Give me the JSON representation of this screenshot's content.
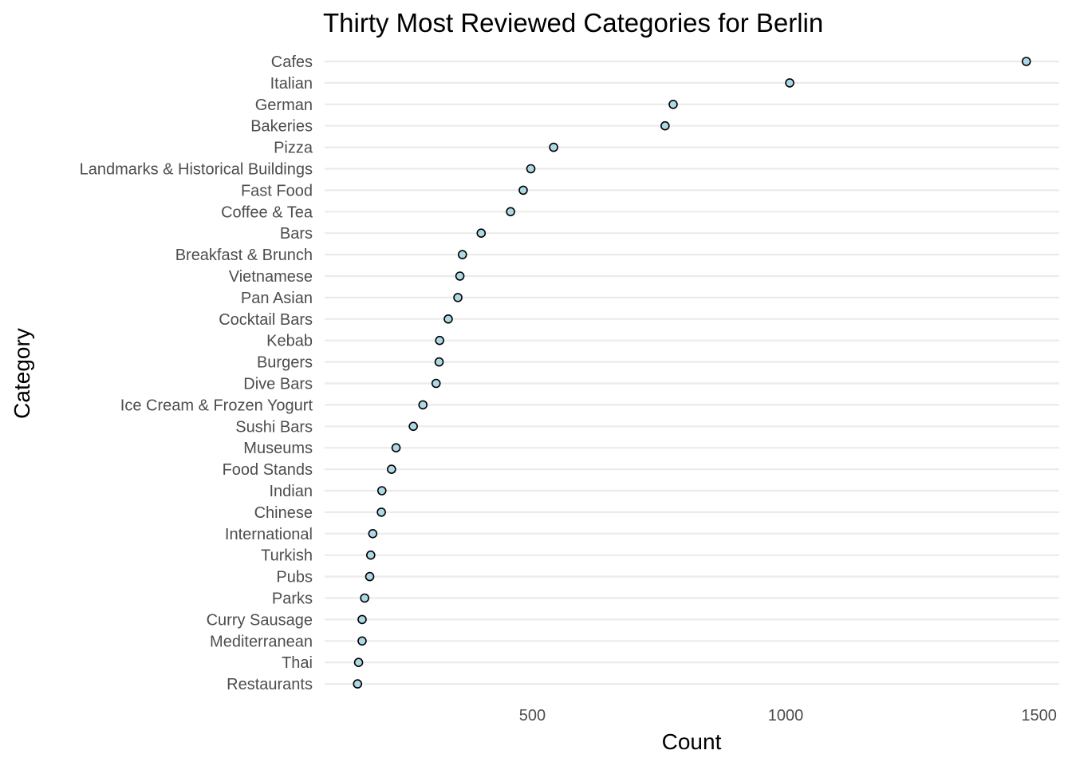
{
  "chart_data": {
    "type": "scatter",
    "title": "Thirty Most Reviewed Categories for Berlin",
    "xlabel": "Count",
    "ylabel": "Category",
    "xlim": [
      90,
      1540
    ],
    "xticks": [
      500,
      1000,
      1500
    ],
    "xtick_labels": [
      "500",
      "1000",
      "1500"
    ],
    "grid": "horizontal major lines only",
    "legend": "none",
    "point_fill": "#add8e6",
    "point_stroke": "#000000",
    "categories": [
      "Cafes",
      "Italian",
      "German",
      "Bakeries",
      "Pizza",
      "Landmarks & Historical Buildings",
      "Fast Food",
      "Coffee & Tea",
      "Bars",
      "Breakfast & Brunch",
      "Vietnamese",
      "Pan Asian",
      "Cocktail Bars",
      "Kebab",
      "Burgers",
      "Dive Bars",
      "Ice Cream & Frozen Yogurt",
      "Sushi Bars",
      "Museums",
      "Food Stands",
      "Indian",
      "Chinese",
      "International",
      "Turkish",
      "Pubs",
      "Parks",
      "Curry Sausage",
      "Mediterranean",
      "Thai",
      "Restaurants"
    ],
    "values": [
      1475,
      1008,
      778,
      762,
      542,
      497,
      482,
      457,
      399,
      362,
      357,
      353,
      334,
      317,
      316,
      310,
      284,
      265,
      231,
      222,
      203,
      202,
      185,
      181,
      179,
      169,
      164,
      164,
      157,
      155
    ]
  }
}
